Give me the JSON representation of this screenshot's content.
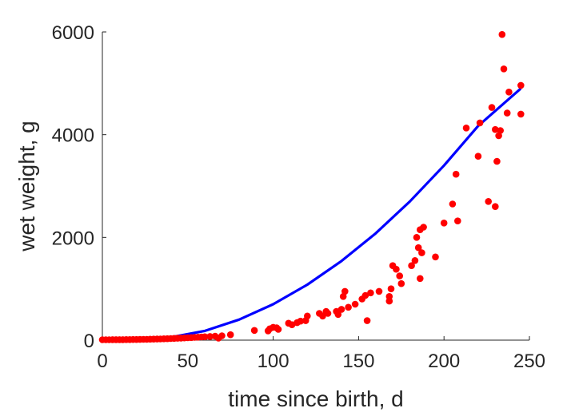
{
  "chart_data": {
    "type": "scatter",
    "title": "",
    "xlabel": "time since birth, d",
    "ylabel": "wet weight, g",
    "xlim": [
      0,
      250
    ],
    "ylim": [
      0,
      6000
    ],
    "xticks": [
      0,
      50,
      100,
      150,
      200,
      250
    ],
    "yticks": [
      0,
      2000,
      4000,
      6000
    ],
    "xtick_labels": [
      "0",
      "50",
      "100",
      "150",
      "200",
      "250"
    ],
    "ytick_labels": [
      "0",
      "2000",
      "4000",
      "6000"
    ],
    "grid": false,
    "legend": "none",
    "series": [
      {
        "type": "scatter",
        "color": "#ff0000",
        "points": [
          [
            0,
            8
          ],
          [
            2,
            8
          ],
          [
            4,
            8
          ],
          [
            6,
            9
          ],
          [
            8,
            9
          ],
          [
            10,
            10
          ],
          [
            12,
            10
          ],
          [
            14,
            11
          ],
          [
            16,
            11
          ],
          [
            18,
            12
          ],
          [
            20,
            13
          ],
          [
            22,
            14
          ],
          [
            24,
            15
          ],
          [
            26,
            16
          ],
          [
            28,
            18
          ],
          [
            30,
            20
          ],
          [
            32,
            22
          ],
          [
            34,
            24
          ],
          [
            36,
            26
          ],
          [
            38,
            28
          ],
          [
            40,
            31
          ],
          [
            42,
            34
          ],
          [
            44,
            37
          ],
          [
            46,
            40
          ],
          [
            48,
            43
          ],
          [
            50,
            47
          ],
          [
            52,
            50
          ],
          [
            54,
            54
          ],
          [
            56,
            58
          ],
          [
            58,
            62
          ],
          [
            60,
            66
          ],
          [
            63,
            72
          ],
          [
            66,
            78
          ],
          [
            68,
            40
          ],
          [
            70,
            85
          ],
          [
            75,
            105
          ],
          [
            89,
            190
          ],
          [
            97,
            180
          ],
          [
            98,
            220
          ],
          [
            100,
            250
          ],
          [
            102,
            240
          ],
          [
            103,
            210
          ],
          [
            109,
            330
          ],
          [
            111,
            300
          ],
          [
            114,
            340
          ],
          [
            116,
            370
          ],
          [
            119,
            380
          ],
          [
            120,
            470
          ],
          [
            127,
            520
          ],
          [
            129,
            470
          ],
          [
            131,
            560
          ],
          [
            132,
            520
          ],
          [
            137,
            560
          ],
          [
            138,
            500
          ],
          [
            140,
            600
          ],
          [
            141,
            850
          ],
          [
            142,
            950
          ],
          [
            144,
            640
          ],
          [
            148,
            700
          ],
          [
            152,
            800
          ],
          [
            154,
            870
          ],
          [
            155,
            380
          ],
          [
            157,
            920
          ],
          [
            162,
            950
          ],
          [
            168,
            760
          ],
          [
            168,
            850
          ],
          [
            169,
            1000
          ],
          [
            170,
            1450
          ],
          [
            172,
            1380
          ],
          [
            174,
            1250
          ],
          [
            175,
            1100
          ],
          [
            181,
            1450
          ],
          [
            183,
            1550
          ],
          [
            184,
            2000
          ],
          [
            185,
            1800
          ],
          [
            186,
            2150
          ],
          [
            186,
            1200
          ],
          [
            187,
            1700
          ],
          [
            188,
            2200
          ],
          [
            195,
            1620
          ],
          [
            200,
            2280
          ],
          [
            205,
            2650
          ],
          [
            207,
            3230
          ],
          [
            208,
            2320
          ],
          [
            213,
            4130
          ],
          [
            220,
            3580
          ],
          [
            221,
            4230
          ],
          [
            226,
            2700
          ],
          [
            228,
            4530
          ],
          [
            230,
            4100
          ],
          [
            230,
            2600
          ],
          [
            231,
            3480
          ],
          [
            232,
            3980
          ],
          [
            233,
            4080
          ],
          [
            234,
            5950
          ],
          [
            235,
            5280
          ],
          [
            237,
            4420
          ],
          [
            238,
            4830
          ],
          [
            245,
            4960
          ],
          [
            245,
            4400
          ]
        ]
      },
      {
        "type": "line",
        "color": "#0000ff",
        "x": [
          0,
          20,
          40,
          60,
          80,
          100,
          120,
          140,
          160,
          180,
          200,
          220,
          245
        ],
        "y": [
          0,
          5,
          55,
          180,
          400,
          700,
          1080,
          1540,
          2080,
          2700,
          3400,
          4170,
          4900
        ]
      }
    ]
  }
}
